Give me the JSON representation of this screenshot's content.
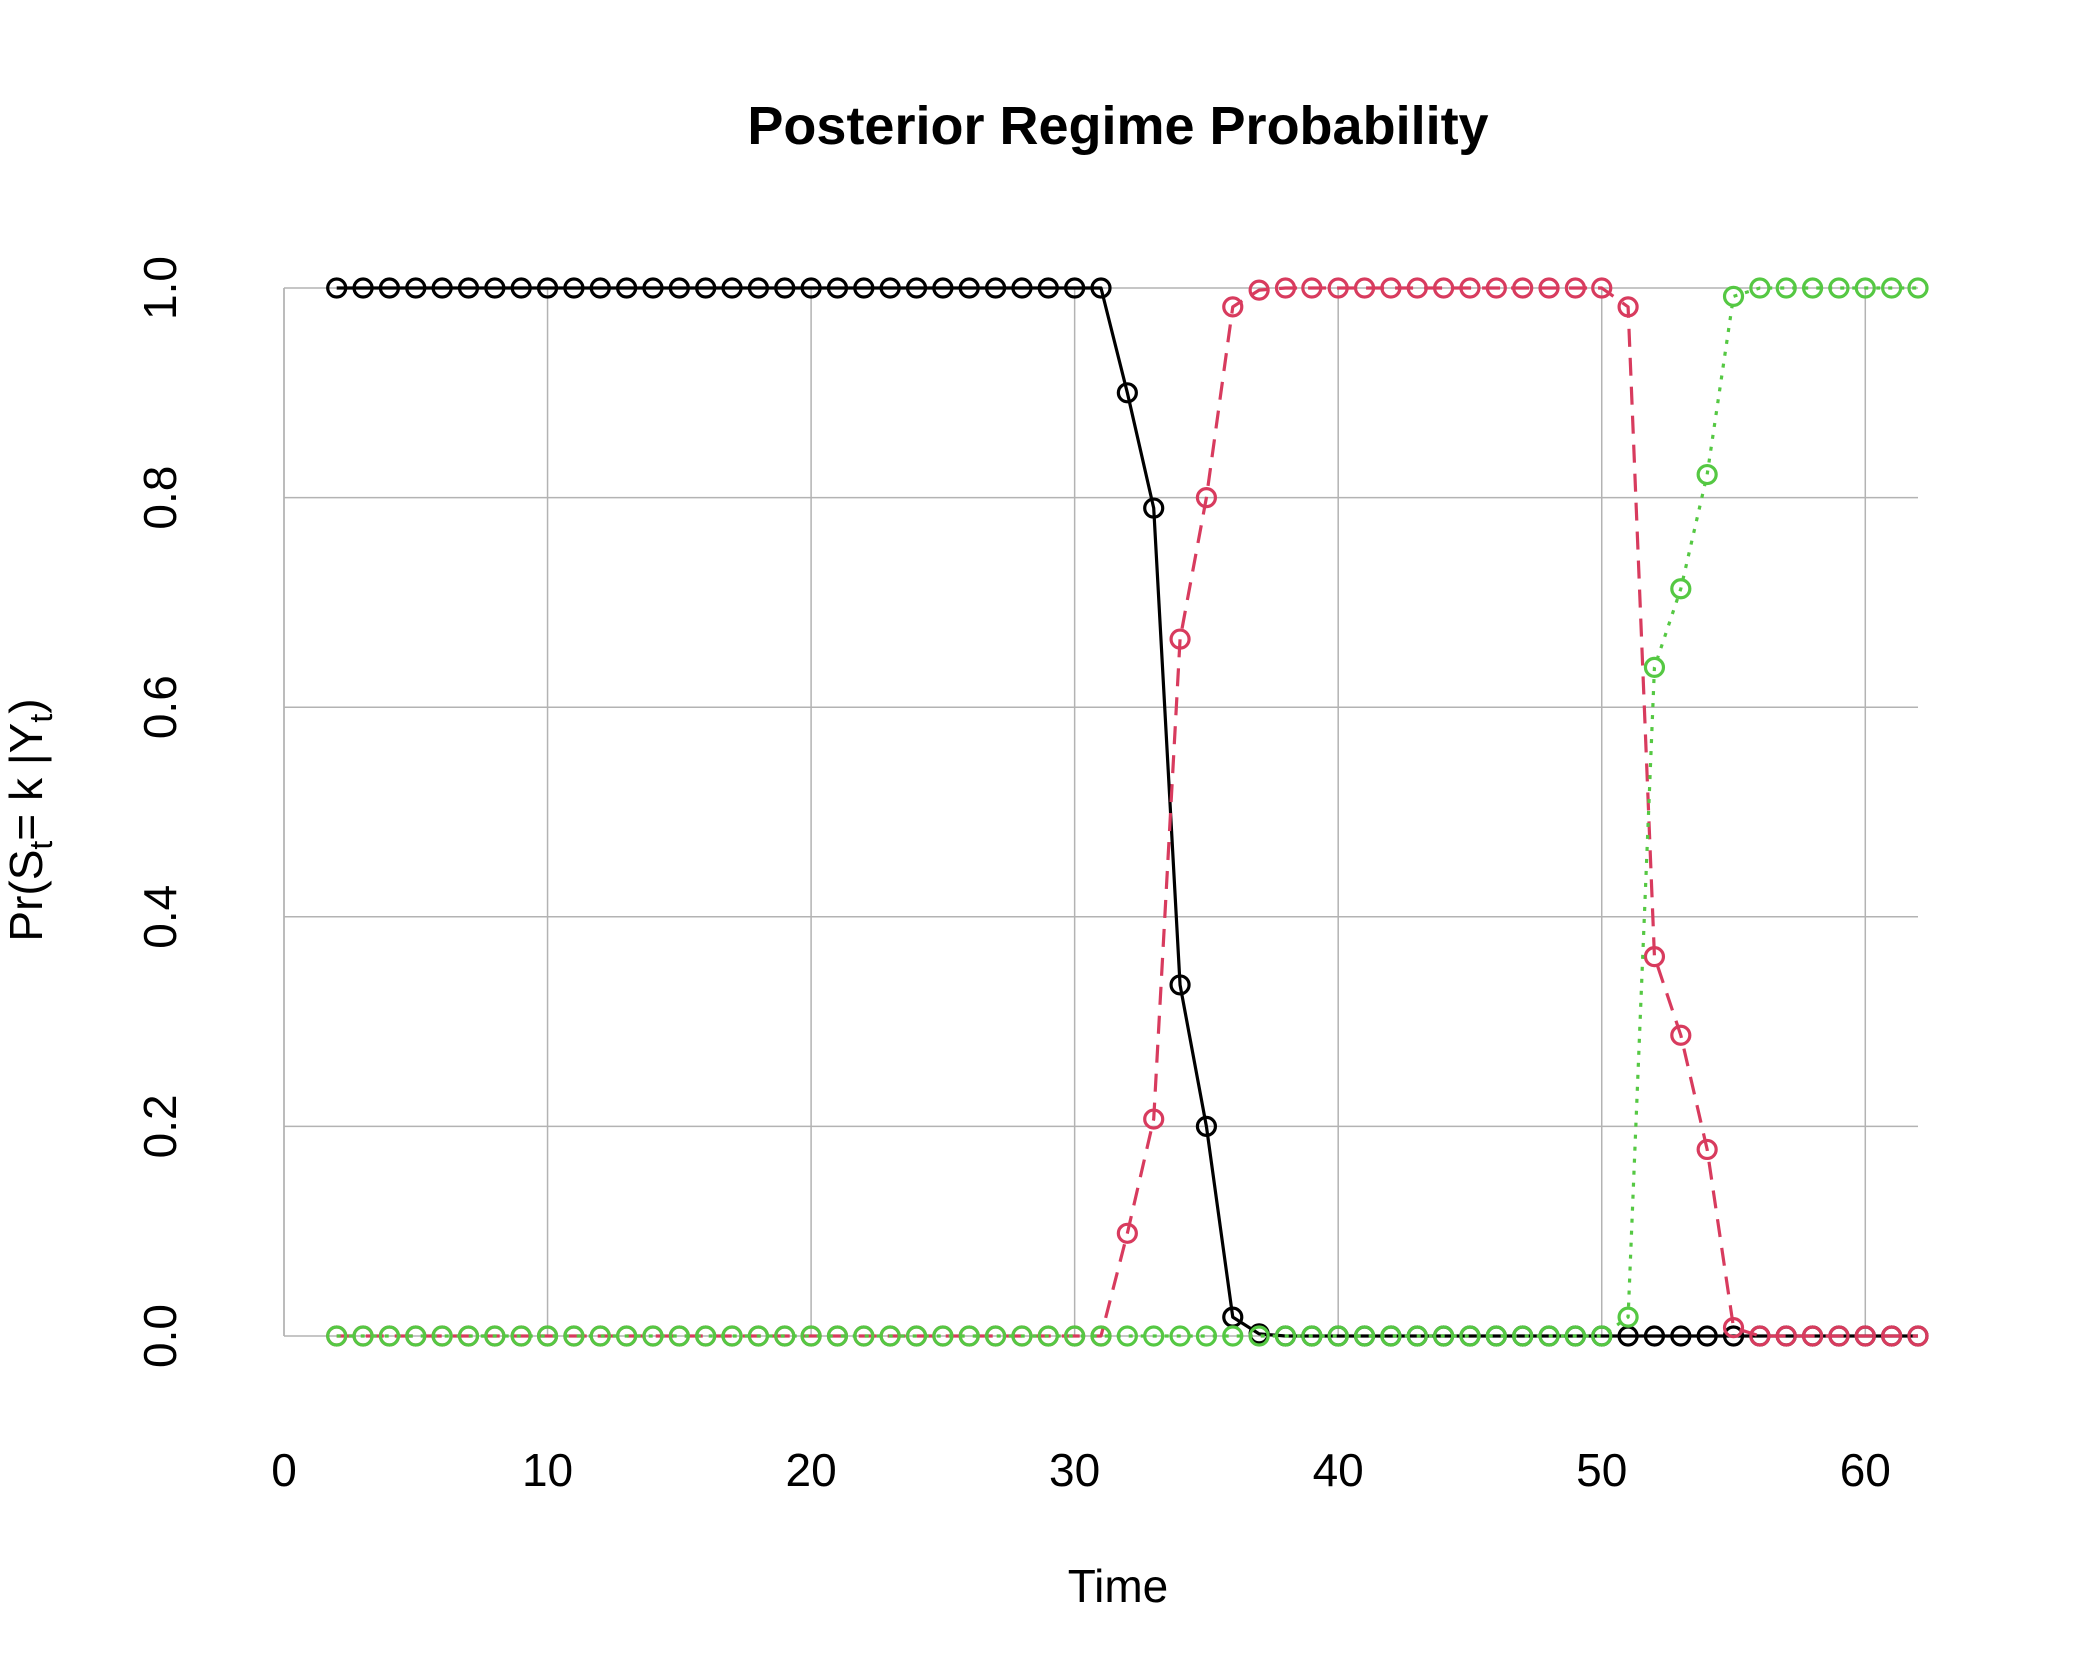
{
  "chart_data": {
    "type": "line",
    "title": "Posterior Regime Probability",
    "xlabel": "Time",
    "ylabel": {
      "prefix": "Pr(S",
      "sub1": "t",
      "mid": "= k |Y",
      "sub2": "t",
      "suffix": ")"
    },
    "xlim": [
      0,
      62
    ],
    "ylim": [
      0,
      1
    ],
    "x_ticks": [
      0,
      10,
      20,
      30,
      40,
      50,
      60
    ],
    "x_tick_labels": [
      "0",
      "10",
      "20",
      "30",
      "40",
      "50",
      "60"
    ],
    "y_ticks": [
      0,
      0.2,
      0.4,
      0.6,
      0.8,
      1.0
    ],
    "y_tick_labels": [
      "0.0",
      "0.2",
      "0.4",
      "0.6",
      "0.8",
      "1.0"
    ],
    "grid": true,
    "grid_color": "#b3b3b3",
    "marker": "open-circle",
    "x": [
      2,
      3,
      4,
      5,
      6,
      7,
      8,
      9,
      10,
      11,
      12,
      13,
      14,
      15,
      16,
      17,
      18,
      19,
      20,
      21,
      22,
      23,
      24,
      25,
      26,
      27,
      28,
      29,
      30,
      31,
      32,
      33,
      34,
      35,
      36,
      37,
      38,
      39,
      40,
      41,
      42,
      43,
      44,
      45,
      46,
      47,
      48,
      49,
      50,
      51,
      52,
      53,
      54,
      55,
      56,
      57,
      58,
      59,
      60,
      61,
      62
    ],
    "series": [
      {
        "color": "#000000",
        "dash": "solid",
        "values": [
          1,
          1,
          1,
          1,
          1,
          1,
          1,
          1,
          1,
          1,
          1,
          1,
          1,
          1,
          1,
          1,
          1,
          1,
          1,
          1,
          1,
          1,
          1,
          1,
          1,
          1,
          1,
          1,
          1,
          1,
          0.9,
          0.79,
          0.335,
          0.2,
          0.018,
          0.002,
          0,
          0,
          0,
          0,
          0,
          0,
          0,
          0,
          0,
          0,
          0,
          0,
          0,
          0,
          0,
          0,
          0,
          0,
          0,
          0,
          0,
          0,
          0,
          0,
          0
        ]
      },
      {
        "color": "#d83b5e",
        "dash": "dashed",
        "values": [
          0,
          0,
          0,
          0,
          0,
          0,
          0,
          0,
          0,
          0,
          0,
          0,
          0,
          0,
          0,
          0,
          0,
          0,
          0,
          0,
          0,
          0,
          0,
          0,
          0,
          0,
          0,
          0,
          0,
          0,
          0.098,
          0.207,
          0.665,
          0.8,
          0.982,
          0.998,
          1,
          1,
          1,
          1,
          1,
          1,
          1,
          1,
          1,
          1,
          1,
          1,
          1,
          0.982,
          0.362,
          0.287,
          0.178,
          0.008,
          0,
          0,
          0,
          0,
          0,
          0,
          0
        ]
      },
      {
        "color": "#55c843",
        "dash": "dotted",
        "values": [
          0,
          0,
          0,
          0,
          0,
          0,
          0,
          0,
          0,
          0,
          0,
          0,
          0,
          0,
          0,
          0,
          0,
          0,
          0,
          0,
          0,
          0,
          0,
          0,
          0,
          0,
          0,
          0,
          0,
          0,
          0,
          0,
          0,
          0,
          0,
          0,
          0,
          0,
          0,
          0,
          0,
          0,
          0,
          0,
          0,
          0,
          0,
          0,
          0,
          0.018,
          0.638,
          0.713,
          0.822,
          0.992,
          1,
          1,
          1,
          1,
          1,
          1,
          1
        ]
      }
    ]
  }
}
